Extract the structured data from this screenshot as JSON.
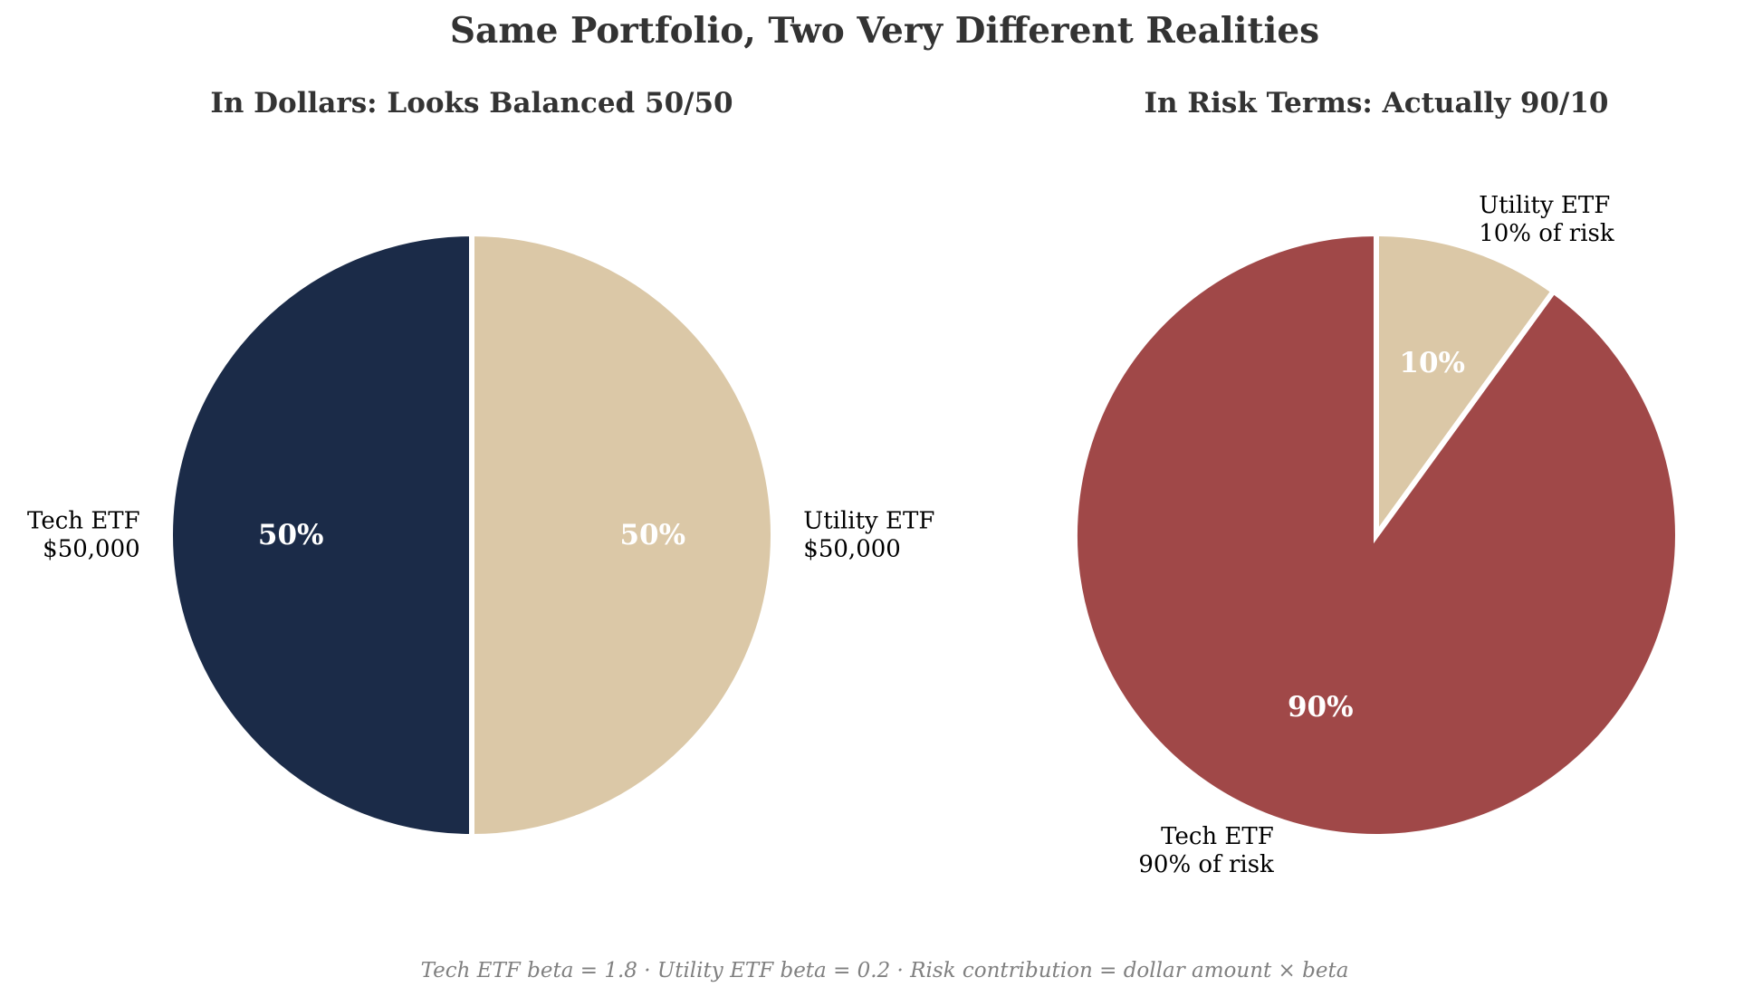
{
  "figure": {
    "title": "Same Portfolio, Two Very Different Realities",
    "footnote": "Tech ETF beta = 1.8 · Utility ETF beta = 0.2 · Risk contribution = dollar amount × beta"
  },
  "chart_data": [
    {
      "type": "pie",
      "title": "In Dollars: Looks Balanced 50/50",
      "start_angle_deg": 90,
      "direction": "clockwise",
      "slices": [
        {
          "name": "Utility ETF",
          "value": 50,
          "pct_label": "50%",
          "label_lines": [
            "Utility ETF",
            "$50,000"
          ],
          "color": "#dbc8a7"
        },
        {
          "name": "Tech ETF",
          "value": 50,
          "pct_label": "50%",
          "label_lines": [
            "Tech ETF",
            "$50,000"
          ],
          "color": "#1b2b48"
        }
      ]
    },
    {
      "type": "pie",
      "title": "In Risk Terms: Actually 90/10",
      "start_angle_deg": 90,
      "direction": "clockwise",
      "slices": [
        {
          "name": "Utility ETF",
          "value": 10,
          "pct_label": "10%",
          "label_lines": [
            "Utility ETF",
            "10% of risk"
          ],
          "color": "#dbc8a7"
        },
        {
          "name": "Tech ETF",
          "value": 90,
          "pct_label": "90%",
          "label_lines": [
            "Tech ETF",
            "90% of risk"
          ],
          "color": "#a04848"
        }
      ]
    }
  ]
}
